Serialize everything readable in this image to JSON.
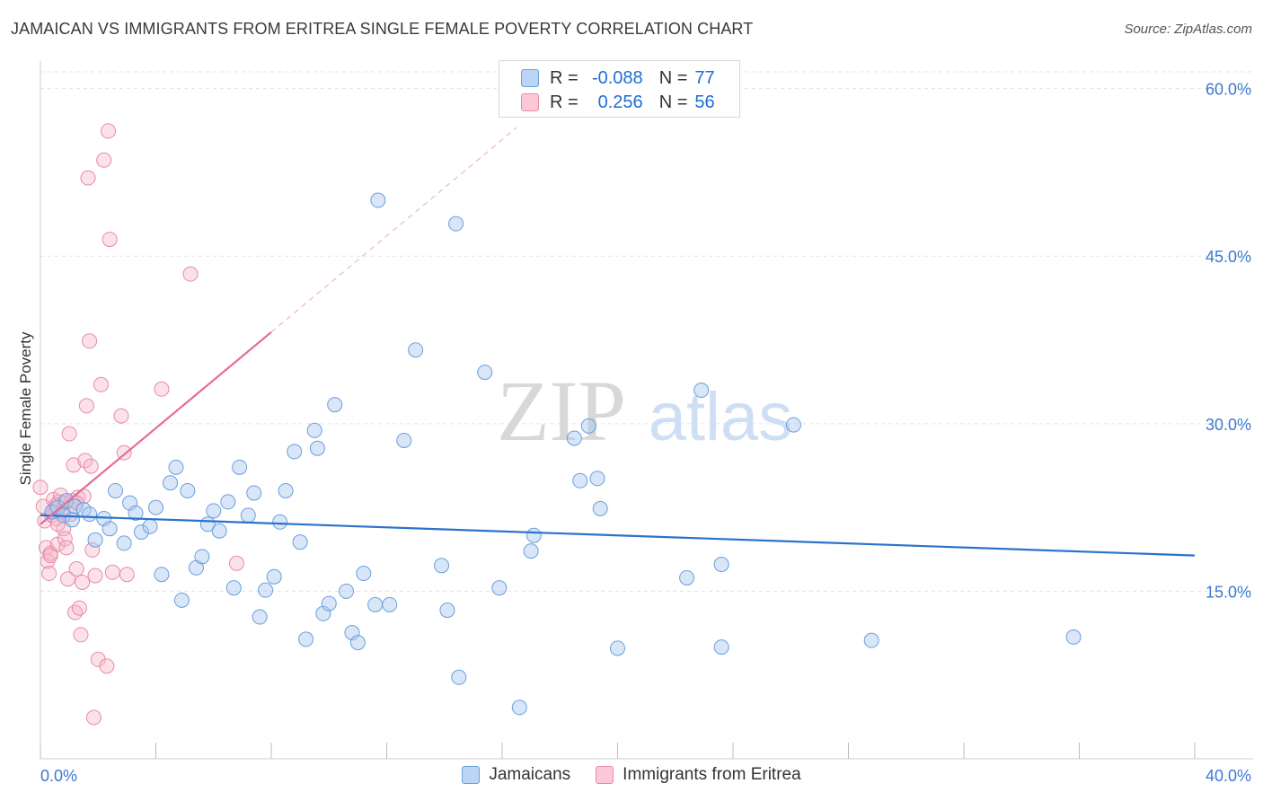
{
  "title": "JAMAICAN VS IMMIGRANTS FROM ERITREA SINGLE FEMALE POVERTY CORRELATION CHART",
  "source": "Source: ZipAtlas.com",
  "watermark": {
    "zip": "ZIP",
    "atlas": "atlas"
  },
  "colors": {
    "blue_fill": "#a9c8f0",
    "blue_stroke": "#6a9fdd",
    "blue_line": "#2a72cc",
    "pink_fill": "#f6b6c9",
    "pink_stroke": "#e98aa7",
    "pink_line": "#e56d94",
    "axis_text": "#3b78d0",
    "grid": "#e3e3e3"
  },
  "legend_top": {
    "rows": [
      {
        "r_label": "R =",
        "r_value": "-0.088",
        "n_label": "N =",
        "n_value": "77",
        "series": "blue"
      },
      {
        "r_label": "R =",
        "r_value": "0.256",
        "n_label": "N =",
        "n_value": "56",
        "series": "pink"
      }
    ]
  },
  "chart_data": {
    "type": "scatter",
    "title": "JAMAICAN VS IMMIGRANTS FROM ERITREA SINGLE FEMALE POVERTY CORRELATION CHART",
    "xlabel": "",
    "ylabel": "Single Female Poverty",
    "xlim": [
      0,
      40
    ],
    "ylim": [
      0,
      61.5
    ],
    "x_tick_labels": [
      {
        "value": 0,
        "label": "0.0%"
      },
      {
        "value": 40,
        "label": "40.0%"
      }
    ],
    "y_tick_labels": [
      {
        "value": 15,
        "label": "15.0%"
      },
      {
        "value": 30,
        "label": "30.0%"
      },
      {
        "value": 45,
        "label": "45.0%"
      },
      {
        "value": 60,
        "label": "60.0%"
      }
    ],
    "x_minor_ticks": [
      0,
      4,
      8,
      12,
      16,
      20,
      24,
      28,
      32,
      36,
      40
    ],
    "grid": true,
    "series": [
      {
        "name": "Jamaicans",
        "color": "blue",
        "trend": {
          "x": [
            0,
            40
          ],
          "y": [
            21.8,
            18.2
          ]
        },
        "points": [
          [
            0.4,
            22.1
          ],
          [
            0.6,
            22.5
          ],
          [
            0.8,
            21.8
          ],
          [
            0.9,
            23.1
          ],
          [
            1.1,
            21.4
          ],
          [
            1.2,
            22.6
          ],
          [
            1.5,
            22.3
          ],
          [
            1.7,
            21.9
          ],
          [
            1.9,
            19.6
          ],
          [
            2.2,
            21.5
          ],
          [
            2.4,
            20.6
          ],
          [
            2.6,
            24.0
          ],
          [
            2.9,
            19.3
          ],
          [
            3.1,
            22.9
          ],
          [
            3.3,
            22.0
          ],
          [
            3.5,
            20.3
          ],
          [
            3.8,
            20.8
          ],
          [
            4.0,
            22.5
          ],
          [
            4.2,
            16.5
          ],
          [
            4.5,
            24.7
          ],
          [
            4.7,
            26.1
          ],
          [
            4.9,
            14.2
          ],
          [
            5.1,
            24.0
          ],
          [
            5.4,
            17.1
          ],
          [
            5.6,
            18.1
          ],
          [
            5.8,
            21.0
          ],
          [
            6.0,
            22.2
          ],
          [
            6.2,
            20.4
          ],
          [
            6.5,
            23.0
          ],
          [
            6.7,
            15.3
          ],
          [
            6.9,
            26.1
          ],
          [
            7.2,
            21.8
          ],
          [
            7.4,
            23.8
          ],
          [
            7.6,
            12.7
          ],
          [
            7.8,
            15.1
          ],
          [
            8.1,
            16.3
          ],
          [
            8.3,
            21.2
          ],
          [
            8.5,
            24.0
          ],
          [
            8.8,
            27.5
          ],
          [
            9.0,
            19.4
          ],
          [
            9.2,
            10.7
          ],
          [
            9.5,
            29.4
          ],
          [
            9.6,
            27.8
          ],
          [
            9.8,
            13.0
          ],
          [
            10.0,
            13.9
          ],
          [
            10.2,
            31.7
          ],
          [
            10.6,
            15.0
          ],
          [
            10.8,
            11.3
          ],
          [
            11.0,
            10.4
          ],
          [
            11.2,
            16.6
          ],
          [
            11.6,
            13.8
          ],
          [
            11.7,
            50.0
          ],
          [
            12.1,
            13.8
          ],
          [
            12.6,
            28.5
          ],
          [
            13.0,
            36.6
          ],
          [
            13.9,
            17.3
          ],
          [
            14.1,
            13.3
          ],
          [
            14.4,
            47.9
          ],
          [
            14.5,
            7.3
          ],
          [
            15.4,
            34.6
          ],
          [
            15.9,
            15.3
          ],
          [
            16.6,
            4.6
          ],
          [
            17.0,
            18.6
          ],
          [
            17.1,
            20.0
          ],
          [
            18.5,
            28.7
          ],
          [
            18.7,
            24.9
          ],
          [
            19.0,
            29.8
          ],
          [
            19.3,
            25.1
          ],
          [
            19.4,
            22.4
          ],
          [
            20.0,
            9.9
          ],
          [
            22.4,
            16.2
          ],
          [
            22.9,
            33.0
          ],
          [
            23.6,
            17.4
          ],
          [
            23.6,
            10.0
          ],
          [
            26.1,
            29.9
          ],
          [
            28.8,
            10.6
          ],
          [
            35.8,
            10.9
          ]
        ]
      },
      {
        "name": "Immigrants from Eritrea",
        "color": "pink",
        "trend": {
          "x": [
            0,
            8.0
          ],
          "y": [
            21.0,
            38.2
          ],
          "dash_to": [
            16.5,
            56.5
          ]
        },
        "points": [
          [
            0.0,
            24.3
          ],
          [
            0.1,
            22.6
          ],
          [
            0.15,
            21.3
          ],
          [
            0.2,
            18.9
          ],
          [
            0.25,
            17.7
          ],
          [
            0.3,
            16.6
          ],
          [
            0.35,
            18.4
          ],
          [
            0.4,
            21.8
          ],
          [
            0.45,
            23.2
          ],
          [
            0.5,
            22.4
          ],
          [
            0.55,
            21.5
          ],
          [
            0.6,
            19.2
          ],
          [
            0.65,
            23.0
          ],
          [
            0.7,
            23.6
          ],
          [
            0.75,
            22.1
          ],
          [
            0.8,
            20.6
          ],
          [
            0.85,
            19.7
          ],
          [
            0.9,
            18.9
          ],
          [
            0.95,
            16.1
          ],
          [
            1.0,
            29.1
          ],
          [
            1.05,
            21.9
          ],
          [
            1.1,
            23.1
          ],
          [
            1.15,
            26.3
          ],
          [
            1.2,
            13.1
          ],
          [
            1.25,
            17.0
          ],
          [
            1.3,
            23.4
          ],
          [
            1.35,
            13.5
          ],
          [
            1.4,
            11.1
          ],
          [
            1.45,
            15.8
          ],
          [
            1.5,
            23.5
          ],
          [
            1.55,
            26.7
          ],
          [
            1.6,
            31.6
          ],
          [
            1.65,
            52.0
          ],
          [
            1.7,
            37.4
          ],
          [
            1.75,
            26.2
          ],
          [
            1.8,
            18.7
          ],
          [
            1.85,
            3.7
          ],
          [
            1.9,
            16.4
          ],
          [
            2.0,
            8.9
          ],
          [
            2.1,
            33.5
          ],
          [
            2.2,
            53.6
          ],
          [
            2.3,
            8.3
          ],
          [
            2.35,
            56.2
          ],
          [
            2.4,
            46.5
          ],
          [
            2.5,
            16.7
          ],
          [
            2.8,
            30.7
          ],
          [
            2.9,
            27.4
          ],
          [
            3.0,
            16.5
          ],
          [
            4.2,
            33.1
          ],
          [
            5.2,
            43.4
          ],
          [
            6.8,
            17.5
          ],
          [
            0.35,
            18.2
          ],
          [
            0.55,
            22.7
          ],
          [
            0.85,
            22.9
          ],
          [
            1.25,
            22.9
          ],
          [
            0.6,
            21.0
          ]
        ]
      }
    ]
  },
  "bottom_legend": [
    {
      "label": "Jamaicans",
      "color": "blue"
    },
    {
      "label": "Immigrants from Eritrea",
      "color": "pink"
    }
  ]
}
